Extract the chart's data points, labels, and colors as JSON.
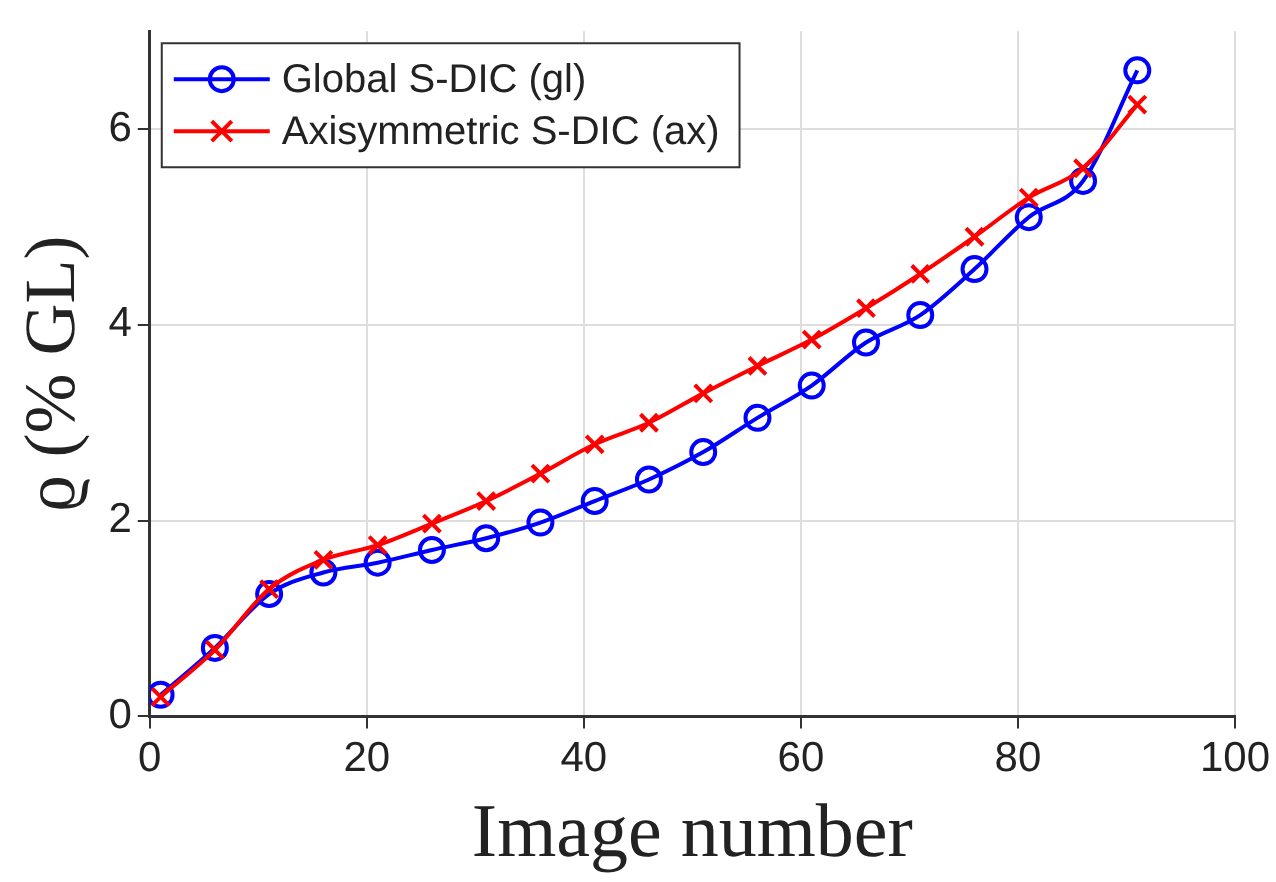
{
  "chart_data": {
    "type": "line",
    "xlabel": "Image number",
    "ylabel": "ϱ (% GL)",
    "x": [
      1,
      6,
      11,
      16,
      21,
      26,
      31,
      36,
      41,
      46,
      51,
      56,
      61,
      66,
      71,
      76,
      81,
      86,
      91
    ],
    "series": [
      {
        "name": "Global S-DIC (gl)",
        "color": "#0000ff",
        "marker": "circle",
        "values": [
          0.22,
          0.7,
          1.25,
          1.47,
          1.57,
          1.7,
          1.82,
          1.98,
          2.2,
          2.42,
          2.7,
          3.05,
          3.38,
          3.82,
          4.1,
          4.57,
          5.1,
          5.47,
          6.6
        ]
      },
      {
        "name": "Axisymmetric S-DIC (ax)",
        "color": "#ff0000",
        "marker": "cross",
        "values": [
          0.2,
          0.68,
          1.3,
          1.6,
          1.75,
          1.97,
          2.2,
          2.48,
          2.78,
          3.0,
          3.3,
          3.58,
          3.85,
          4.17,
          4.52,
          4.9,
          5.3,
          5.6,
          6.25
        ]
      }
    ],
    "xlim": [
      0,
      100
    ],
    "xticks": [
      0,
      20,
      40,
      60,
      80,
      100
    ],
    "ylim": [
      0,
      7
    ],
    "yticks": [
      0,
      2,
      4,
      6
    ],
    "grid": true,
    "legend": "top left",
    "line_style": "solid"
  }
}
